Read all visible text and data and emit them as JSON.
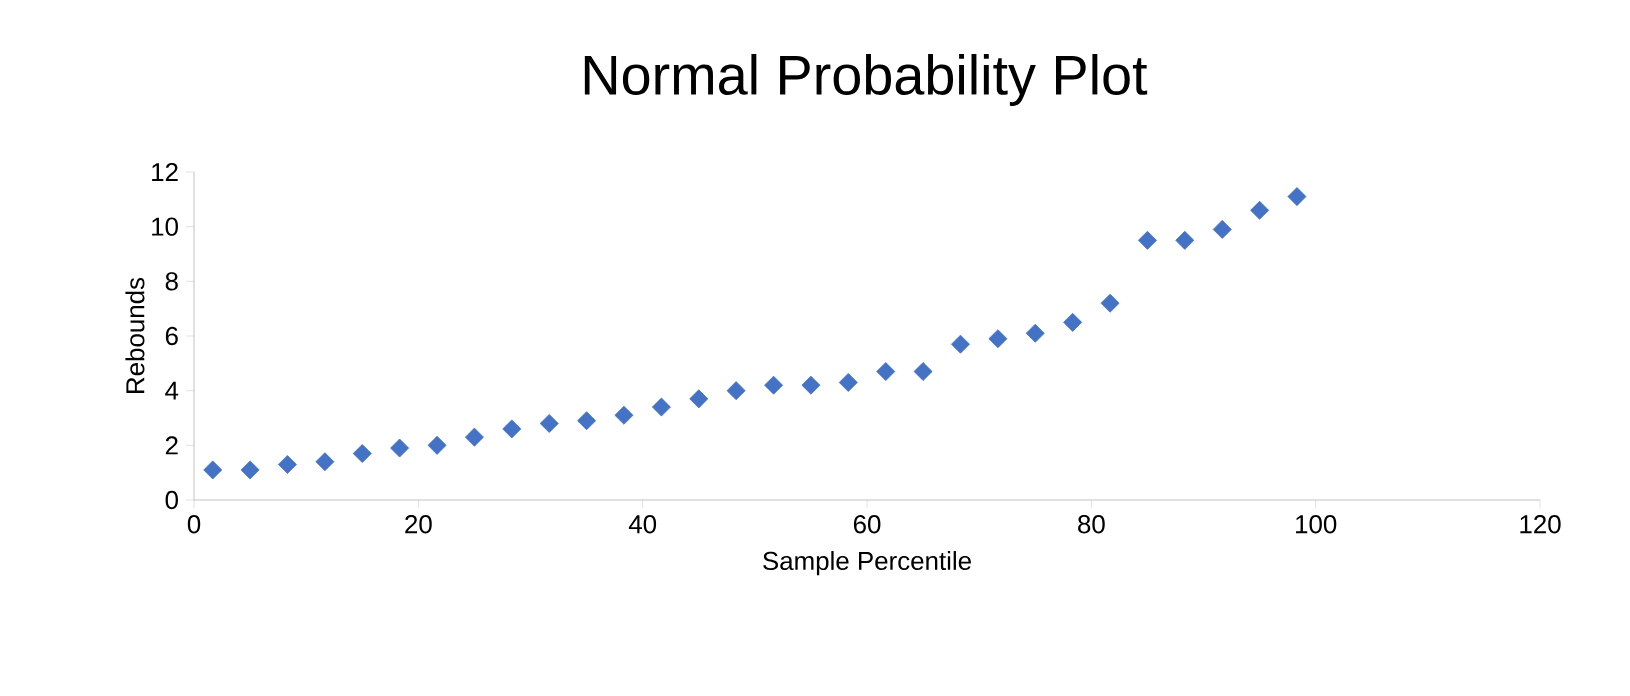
{
  "chart_data": {
    "type": "scatter",
    "title": "Normal Probability Plot",
    "xlabel": "Sample Percentile",
    "ylabel": "Rebounds",
    "x": [
      1.67,
      5,
      8.33,
      11.67,
      15,
      18.33,
      21.67,
      25,
      28.33,
      31.67,
      35,
      38.33,
      41.67,
      45,
      48.33,
      51.67,
      55,
      58.33,
      61.67,
      65,
      68.33,
      71.67,
      75,
      78.33,
      81.67,
      85,
      88.33,
      91.67,
      95,
      98.33
    ],
    "values": [
      1.1,
      1.1,
      1.3,
      1.4,
      1.7,
      1.9,
      2.0,
      2.3,
      2.6,
      2.8,
      2.9,
      3.1,
      3.4,
      3.7,
      4.0,
      4.2,
      4.2,
      4.3,
      4.7,
      4.7,
      5.7,
      5.9,
      6.1,
      6.5,
      7.2,
      9.5,
      9.5,
      9.9,
      10.6,
      11.1
    ],
    "color": "#4472c4",
    "marker": "diamond",
    "grid": false,
    "xlim": [
      0,
      120
    ],
    "xticks": [
      0,
      20,
      40,
      60,
      80,
      100,
      120
    ],
    "ylim": [
      0,
      12
    ],
    "yticks": [
      0,
      2,
      4,
      6,
      8,
      10,
      12
    ]
  }
}
